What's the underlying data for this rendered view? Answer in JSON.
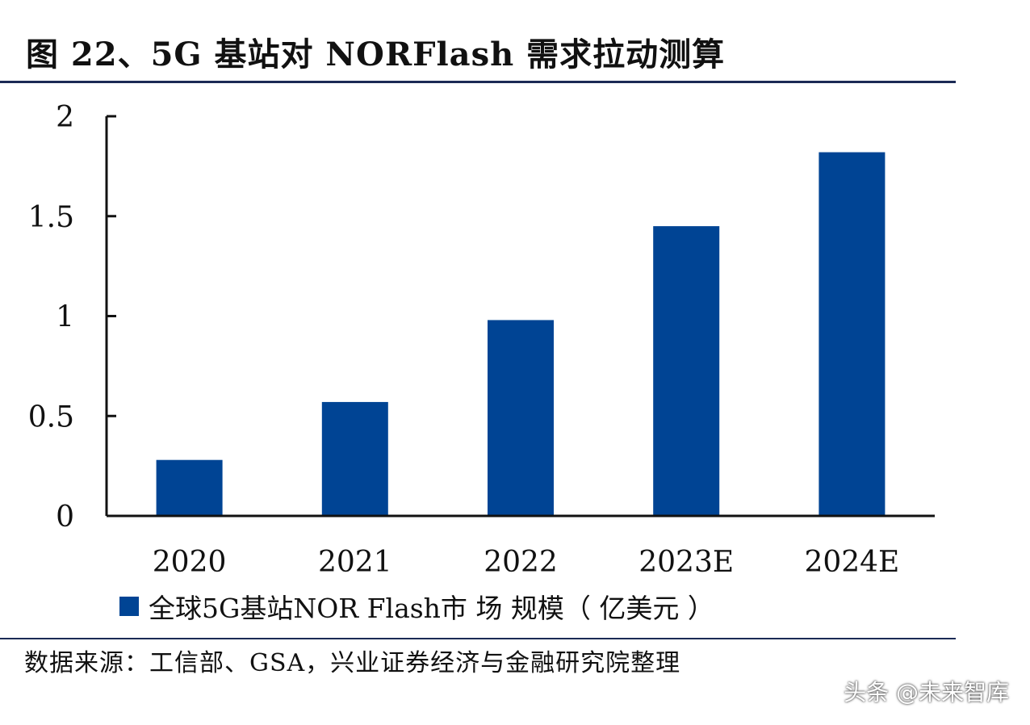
{
  "figure": {
    "title": "图 22、5G 基站对 NORFlash 需求拉动测算",
    "source": "数据来源：工信部、GSA，兴业证券经济与金融研究院整理",
    "watermark": "头条 @未来智库"
  },
  "colors": {
    "bar": "#004494",
    "axis": "#111111",
    "rule": "#1b2a55"
  },
  "chart_data": {
    "type": "bar",
    "title": "",
    "xlabel": "",
    "ylabel": "",
    "categories": [
      "2020",
      "2021",
      "2022",
      "2023E",
      "2024E"
    ],
    "series": [
      {
        "name": "全球5G基站NOR Flash市 场 规模（ 亿美元 ）",
        "values": [
          0.28,
          0.57,
          0.98,
          1.45,
          1.82
        ]
      }
    ],
    "ylim": [
      0,
      2
    ],
    "yticks": [
      "0",
      "0.5",
      "1",
      "1.5",
      "2"
    ],
    "ytick_values": [
      0,
      0.5,
      1,
      1.5,
      2
    ],
    "grid": false,
    "legend_position": "bottom-left"
  }
}
